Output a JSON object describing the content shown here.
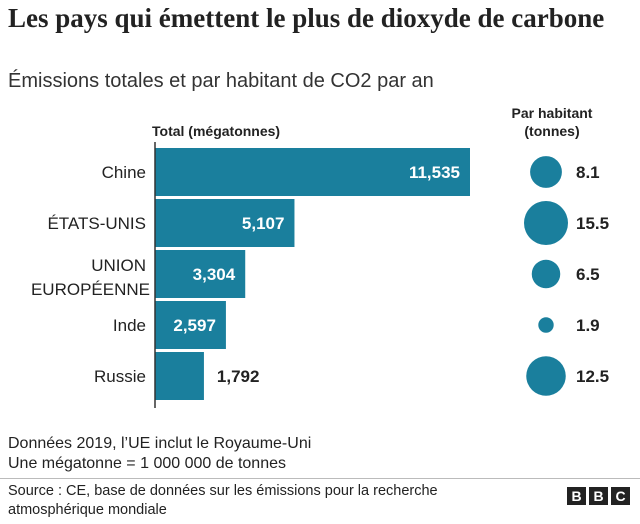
{
  "title": "Les pays qui émettent le plus de dioxyde de carbone",
  "subtitle": "Émissions totales et par habitant de CO2 par an",
  "chart_data": {
    "type": "bar",
    "orientation": "horizontal",
    "categories": [
      "Chine",
      "ÉTATS-UNIS",
      "UNION EUROPÉENNE",
      "Inde",
      "Russie"
    ],
    "series": [
      {
        "name": "Total (mégatonnes)",
        "values": [
          11535,
          5107,
          3304,
          2597,
          1792
        ],
        "labels": [
          "11,535",
          "5,107",
          "3,304",
          "2,597",
          "1,792"
        ]
      },
      {
        "name": "Par habitant (tonnes)",
        "values": [
          8.1,
          15.5,
          6.5,
          1.9,
          12.5
        ],
        "labels": [
          "8.1",
          "15.5",
          "6.5",
          "1.9",
          "12.5"
        ]
      }
    ],
    "bar_header": "Total (mégatonnes)",
    "circle_header": [
      "Par habitant",
      "(tonnes)"
    ],
    "xlim": [
      0,
      11535
    ],
    "color": "#1a7f9d"
  },
  "notes": {
    "line1": "Données 2019, l’UE inclut le Royaume-Uni",
    "line2": "Une mégatonne = 1 000 000 de tonnes"
  },
  "source": "Source : CE, base de données sur les émissions pour la recherche atmosphérique mondiale",
  "logo": [
    "B",
    "B",
    "C"
  ]
}
